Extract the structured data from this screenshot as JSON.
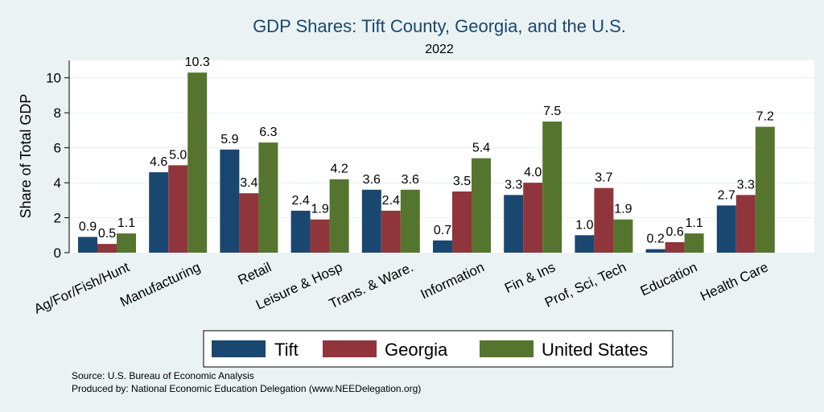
{
  "chart_data": {
    "type": "bar",
    "title": "GDP Shares: Tift County, Georgia, and the U.S.",
    "subtitle": "2022",
    "ylabel": "Share of Total GDP",
    "xlabel": "",
    "ylim": [
      0,
      11
    ],
    "yticks": [
      0,
      2,
      4,
      6,
      8,
      10
    ],
    "grid": true,
    "legend_position": "bottom",
    "categories": [
      "Ag/For/Fish/Hunt",
      "Manufacturing",
      "Retail",
      "Leisure & Hosp",
      "Trans. & Ware.",
      "Information",
      "Fin & Ins",
      "Prof, Sci, Tech",
      "Education",
      "Health Care"
    ],
    "series": [
      {
        "name": "Tift",
        "color": "#1a476f",
        "values": [
          0.9,
          4.6,
          5.9,
          2.4,
          3.6,
          0.7,
          3.3,
          1.0,
          0.2,
          2.7
        ]
      },
      {
        "name": "Georgia",
        "color": "#90353b",
        "values": [
          0.5,
          5.0,
          3.4,
          1.9,
          2.4,
          3.5,
          4.0,
          3.7,
          0.6,
          3.3
        ]
      },
      {
        "name": "United States",
        "color": "#55752f",
        "values": [
          1.1,
          10.3,
          6.3,
          4.2,
          3.6,
          5.4,
          7.5,
          1.9,
          1.1,
          7.2
        ]
      }
    ],
    "notes": [
      "Source: U.S. Bureau of Economic Analysis",
      "Produced by: National Economic Education Delegation (www.NEEDelegation.org)"
    ]
  }
}
